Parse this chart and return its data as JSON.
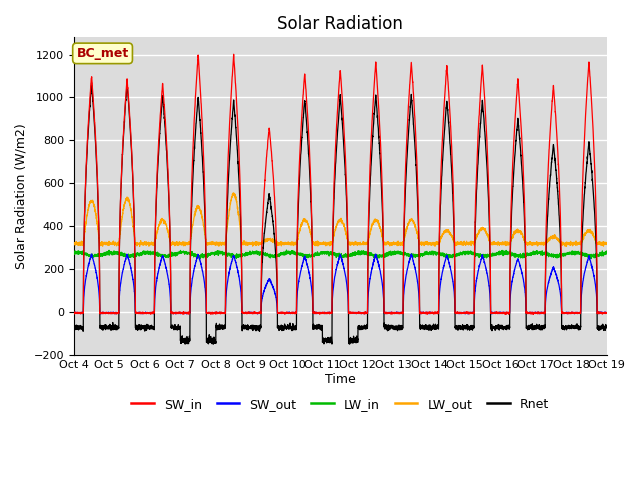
{
  "title": "Solar Radiation",
  "ylabel": "Solar Radiation (W/m2)",
  "xlabel": "Time",
  "ylim": [
    -200,
    1280
  ],
  "yticks": [
    -200,
    0,
    200,
    400,
    600,
    800,
    1000,
    1200
  ],
  "xtick_labels": [
    "Oct 4",
    "Oct 5",
    "Oct 6",
    "Oct 7",
    "Oct 8",
    "Oct 9",
    "Oct 10",
    "Oct 11",
    "Oct 12",
    "Oct 13",
    "Oct 14",
    "Oct 15",
    "Oct 16",
    "Oct 17",
    "Oct 18",
    "Oct 19"
  ],
  "n_days": 15,
  "pts_per_day": 288,
  "SW_in_peaks": [
    1100,
    1085,
    1065,
    1195,
    1195,
    860,
    1115,
    1130,
    1165,
    1165,
    1150,
    1150,
    1085,
    1055,
    1165
  ],
  "SW_out_peaks": [
    270,
    270,
    265,
    270,
    265,
    155,
    260,
    270,
    270,
    270,
    265,
    265,
    250,
    210,
    260
  ],
  "LW_in_base": 270,
  "LW_out_base": 320,
  "LW_out_day_peaks": [
    520,
    530,
    430,
    490,
    550,
    340,
    430,
    430,
    430,
    430,
    380,
    390,
    380,
    350,
    380
  ],
  "Rnet_peaks": [
    1065,
    1065,
    1010,
    1000,
    985,
    550,
    990,
    1005,
    1010,
    1010,
    985,
    985,
    900,
    780,
    790
  ],
  "Rnet_night": -70,
  "colors": {
    "SW_in": "#FF0000",
    "SW_out": "#0000FF",
    "LW_in": "#00BB00",
    "LW_out": "#FFA500",
    "Rnet": "#000000"
  },
  "legend_label": "BC_met",
  "background_color": "#DCDCDC",
  "grid_color": "#FFFFFF",
  "title_fontsize": 12,
  "axis_fontsize": 9,
  "tick_fontsize": 8,
  "legend_fontsize": 9
}
